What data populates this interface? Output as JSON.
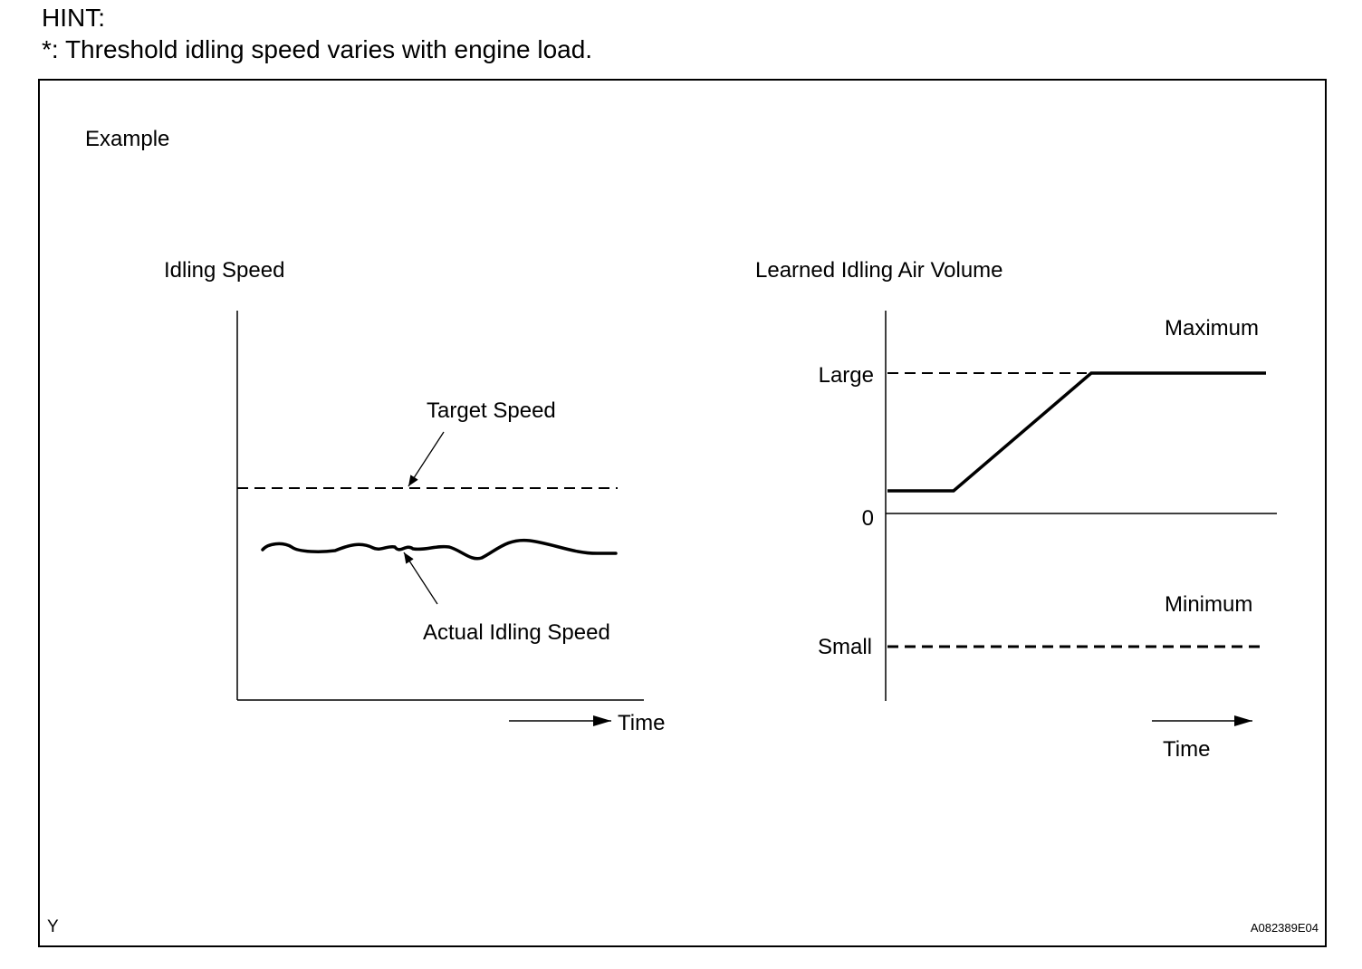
{
  "hint": {
    "heading": "HINT:",
    "note": "*: Threshold idling speed varies with engine load."
  },
  "figure": {
    "example_label": "Example",
    "corner_mark": "Y",
    "figure_code": "A082389E04"
  },
  "left_graph": {
    "title": "Idling Speed",
    "target_label": "Target Speed",
    "actual_label": "Actual Idling Speed",
    "time_label": "Time"
  },
  "right_graph": {
    "title": "Learned Idling Air Volume",
    "maximum_label": "Maximum",
    "minimum_label": "Minimum",
    "large_label": "Large",
    "zero_label": "0",
    "small_label": "Small",
    "time_label": "Time"
  },
  "colors": {
    "ink": "#000000",
    "background": "#ffffff"
  }
}
